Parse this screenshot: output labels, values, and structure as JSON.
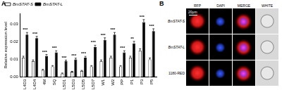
{
  "chart_data": {
    "type": "bar",
    "y_label": "Relative expression level",
    "categories": [
      "L4D3",
      "L4D4",
      "4M",
      "SQ",
      "L5D1",
      "L5D3",
      "L5D5",
      "L5D7",
      "W1",
      "W2",
      "PP",
      "P1",
      "P3",
      "P5"
    ],
    "series": [
      {
        "name": "BmSTAT-S",
        "color": "#ffffff",
        "values": [
          0.011,
          0.009,
          0.004,
          0.006,
          0.002,
          0.003,
          0.0035,
          0.006,
          0.009,
          0.011,
          0.006,
          0.011,
          0.015,
          0.01
        ],
        "errors": [
          0.0008,
          0.0007,
          0.0004,
          0.0005,
          0.0003,
          0.0003,
          0.0003,
          0.0005,
          0.0007,
          0.0008,
          0.0005,
          0.0008,
          0.001,
          0.0008
        ]
      },
      {
        "name": "BmSTAT-L",
        "color": "#000000",
        "values": [
          0.024,
          0.022,
          0.012,
          0.014,
          0.009,
          0.01,
          0.011,
          0.017,
          0.021,
          0.024,
          0.014,
          0.019,
          0.031,
          0.026
        ],
        "errors": [
          0.0012,
          0.001,
          0.0008,
          0.0009,
          0.0006,
          0.0007,
          0.0007,
          0.001,
          0.0012,
          0.0012,
          0.0009,
          0.0012,
          0.0015,
          0.0013
        ]
      }
    ],
    "annotations": [
      "***",
      "***",
      "***",
      "***",
      "***",
      "***",
      "***",
      "***",
      "***",
      "***",
      "***",
      "**",
      "***",
      "***"
    ],
    "ylim": [
      0,
      0.036
    ],
    "yticks": [
      {
        "value": 0,
        "label": "0.00"
      },
      {
        "value": 0.01,
        "label": "0.01"
      },
      {
        "value": 0.02,
        "label": "0.02"
      },
      {
        "value": 0.03,
        "label": "0.03"
      }
    ],
    "grid": false,
    "legend": "upper left"
  },
  "panel_a_label": "A",
  "panel_b": {
    "label": "B",
    "columns": [
      "RFP",
      "DAPI",
      "MERGE",
      "WHITE"
    ],
    "rows": [
      "BmSTAT-S",
      "BmSTAT-L",
      "1180-RED"
    ],
    "scale_bar": "20μm"
  }
}
